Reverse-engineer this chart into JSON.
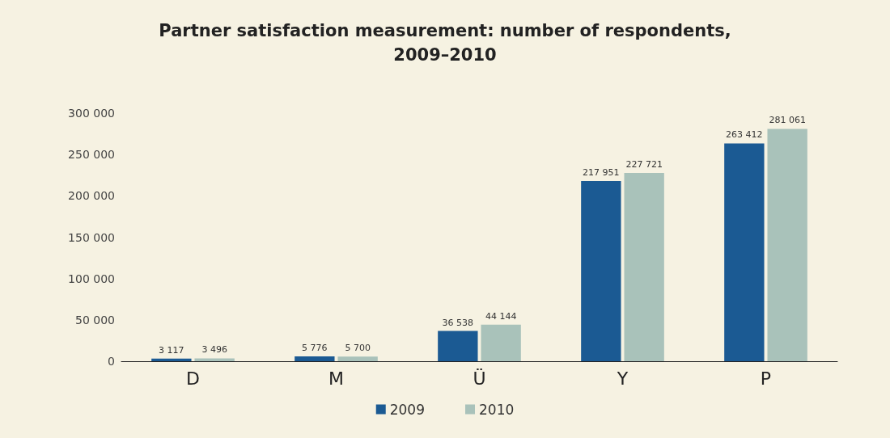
{
  "chart_data": {
    "type": "bar",
    "title": "Partner satisfaction measurement: number of respondents,\n2009–2010",
    "categories": [
      "D",
      "M",
      "Ü",
      "Y",
      "P"
    ],
    "series": [
      {
        "name": "2009",
        "color": "#1b5a93",
        "values": [
          3117,
          5776,
          36538,
          217951,
          263412
        ],
        "value_labels": [
          "3 117",
          "5 776",
          "36 538",
          "217 951",
          "263 412"
        ]
      },
      {
        "name": "2010",
        "color": "#a9c2ba",
        "values": [
          3496,
          5700,
          44144,
          227721,
          281061
        ],
        "value_labels": [
          "3 496",
          "5 700",
          "44 144",
          "227 721",
          "281 061"
        ]
      }
    ],
    "ylim": [
      0,
      300000
    ],
    "yticks": [
      {
        "value": 0,
        "label": "0"
      },
      {
        "value": 50000,
        "label": "50 000"
      },
      {
        "value": 100000,
        "label": "100 000"
      },
      {
        "value": 150000,
        "label": "150 000"
      },
      {
        "value": 200000,
        "label": "200 000"
      },
      {
        "value": 250000,
        "label": "250 000"
      },
      {
        "value": 300000,
        "label": "300 000"
      }
    ],
    "grid": false,
    "legend": "bottom"
  }
}
